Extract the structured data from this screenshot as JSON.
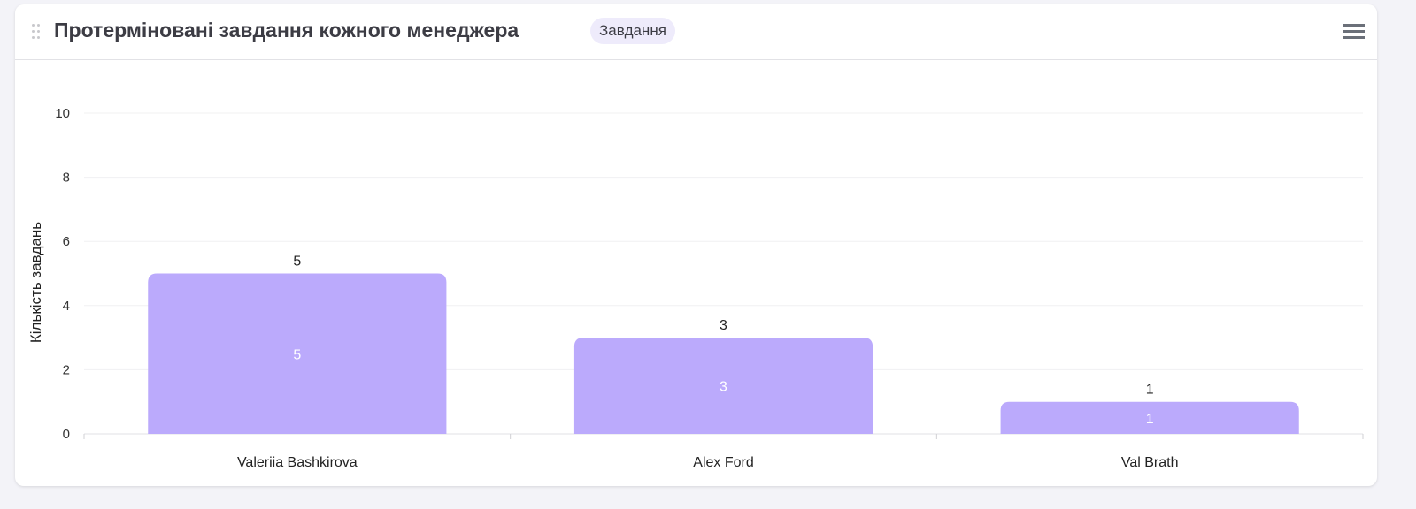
{
  "header": {
    "title": "Протерміновані завдання кожного менеджера",
    "badge": "Завдання"
  },
  "colors": {
    "bar": "#bbaafc",
    "bar_label_inside": "#ffffff",
    "grid": "#f0f0f2"
  },
  "chart_data": {
    "type": "bar",
    "title": "",
    "xlabel": "",
    "ylabel": "Кількість завдань",
    "ylim": [
      0,
      10
    ],
    "yticks": [
      "0",
      "2",
      "4",
      "6",
      "8",
      "10"
    ],
    "grid": true,
    "categories": [
      "Valeriia Bashkirova",
      "Alex Ford",
      "Val Brath"
    ],
    "values": [
      5,
      3,
      1
    ]
  }
}
